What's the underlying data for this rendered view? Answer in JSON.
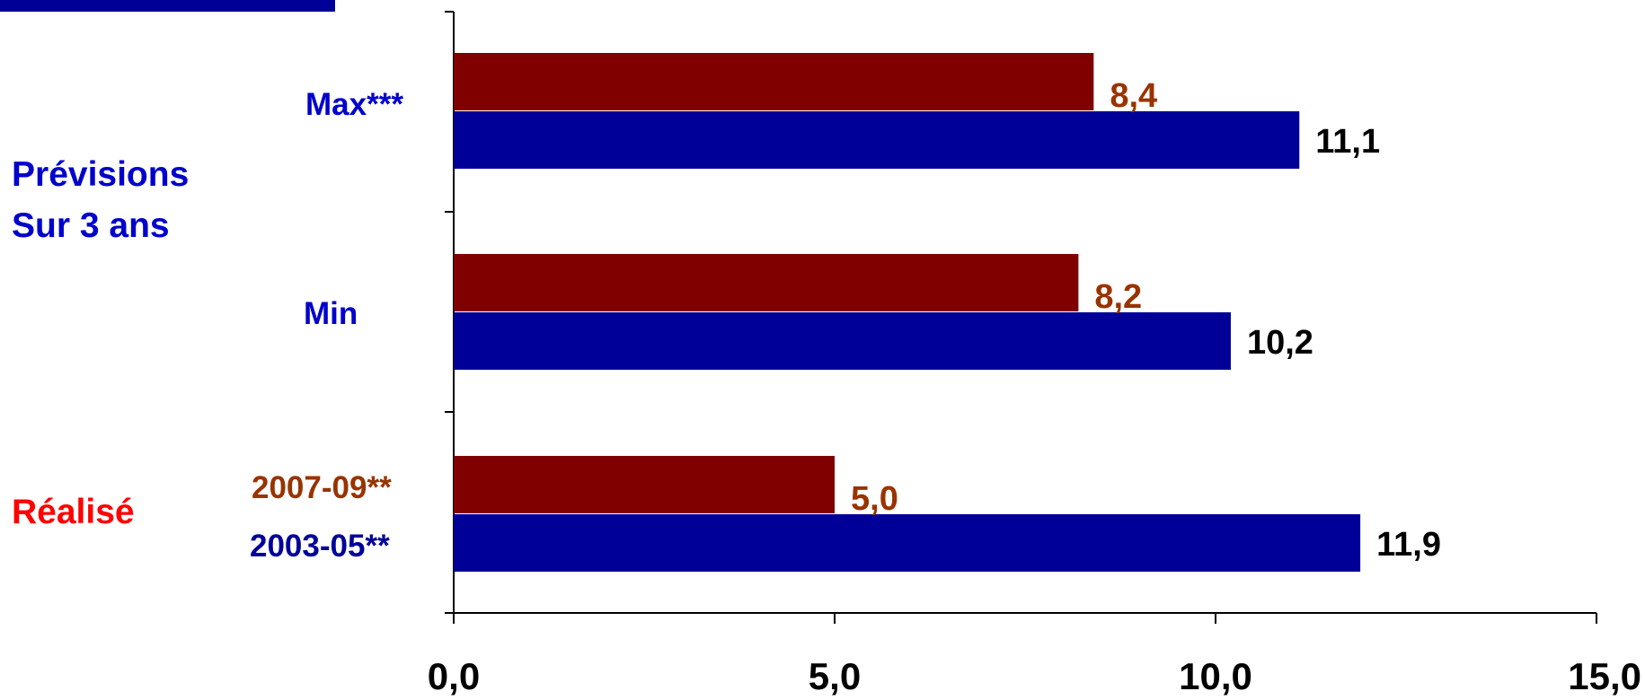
{
  "chart_data": {
    "type": "bar",
    "orientation": "horizontal",
    "groups": [
      {
        "key": "realise",
        "labels": [
          "2007-09**",
          "2003-05**"
        ]
      },
      {
        "key": "min",
        "labels": [
          "Min"
        ]
      },
      {
        "key": "max",
        "labels": [
          "Max***"
        ]
      }
    ],
    "series": [
      {
        "values": [
          5.0,
          8.2,
          8.4
        ],
        "labels": [
          "5,0",
          "8,2",
          "8,4"
        ],
        "color": "#800000",
        "label_color": "#993300"
      },
      {
        "values": [
          11.9,
          10.2,
          11.1
        ],
        "labels": [
          "11,9",
          "10,2",
          "11,1"
        ],
        "color": "#000099",
        "label_color": "#000000"
      }
    ],
    "xlim": [
      0,
      15
    ],
    "x_ticks": [
      0,
      5,
      10,
      15
    ],
    "x_tick_labels": [
      "0,0",
      "5,0",
      "10,0",
      "15,0"
    ],
    "category_headers": [
      {
        "lines": [
          "Prévisions",
          "Sur 3 ans"
        ],
        "color": "#0000CC"
      },
      {
        "lines": [
          "Réalisé"
        ],
        "color": "#FF0000"
      }
    ],
    "grid": false,
    "legend": "none"
  },
  "colors": {
    "axis": "#000000",
    "group_label": "#0000CC",
    "realise_recent_label": "#993300",
    "realise_past_label": "#000099",
    "header_block": "#000099"
  }
}
